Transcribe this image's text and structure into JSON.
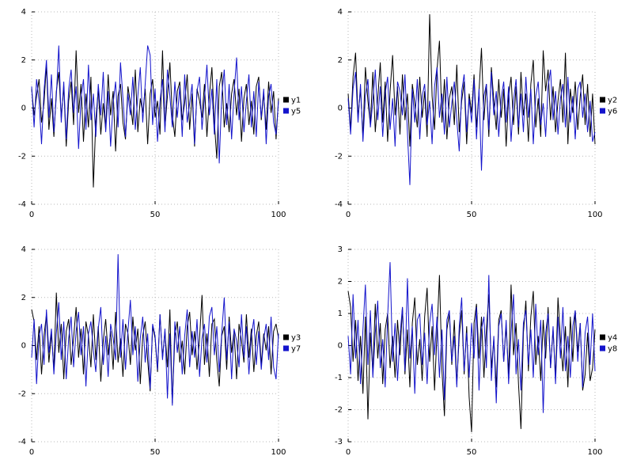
{
  "page": {
    "background": "#ffffff",
    "text_color": "#000000",
    "grid_color": "#b8b8b8"
  },
  "chart_data": [
    {
      "type": "line",
      "title": "",
      "xlabel": "",
      "ylabel": "",
      "x_range": [
        0,
        100
      ],
      "xticks": [
        0,
        50,
        100
      ],
      "ylim": [
        -4,
        4
      ],
      "yticks": [
        -4,
        -2,
        0,
        2,
        4
      ],
      "grid": true,
      "legend_position": "right",
      "series": [
        {
          "name": "y1",
          "color": "#000000",
          "values": [
            0.8,
            -0.3,
            0.5,
            1.2,
            -0.6,
            0.2,
            1.8,
            -0.9,
            0.4,
            -1.2,
            0.7,
            1.5,
            -0.4,
            0.9,
            -1.6,
            0.3,
            1.1,
            -0.7,
            2.4,
            -0.2,
            1.0,
            -1.4,
            0.6,
            -0.8,
            1.3,
            -3.3,
            -0.5,
            0.8,
            -1.1,
            0.2,
            -0.9,
            1.4,
            -0.3,
            0.7,
            -1.8,
            0.5,
            1.0,
            -0.6,
            -1.3,
            0.9,
            0.2,
            -0.7,
            1.6,
            -1.0,
            0.4,
            -0.2,
            0.8,
            -1.5,
            0.6,
            1.2,
            -0.4,
            0.3,
            -1.1,
            2.4,
            -0.8,
            0.5,
            1.9,
            -0.3,
            -1.2,
            0.7,
            1.1,
            -0.5,
            0.2,
            1.4,
            -0.9,
            0.6,
            -1.6,
            0.8,
            0.3,
            -0.4,
            1.0,
            -1.2,
            0.5,
            1.7,
            -0.6,
            -2.1,
            0.9,
            1.5,
            -0.8,
            0.2,
            -1.0,
            0.6,
            1.2,
            -0.3,
            0.8,
            -1.4,
            0.4,
            1.0,
            -0.7,
            0.3,
            -1.1,
            0.9,
            1.3,
            -0.5,
            0.6,
            -0.9,
            1.1,
            -0.2,
            0.7,
            -1.3,
            0.4
          ]
        },
        {
          "name": "y5",
          "color": "#1414cc",
          "values": [
            0.9,
            -0.8,
            1.2,
            0.3,
            -1.5,
            0.7,
            2.0,
            -0.4,
            1.4,
            -1.0,
            0.5,
            2.6,
            -0.6,
            1.1,
            -1.3,
            0.8,
            1.6,
            -0.2,
            0.9,
            -1.7,
            0.4,
            1.2,
            -0.9,
            1.8,
            -0.5,
            0.6,
            -1.2,
            1.0,
            -0.3,
            1.5,
            -1.0,
            0.7,
            -1.6,
            0.2,
            1.1,
            -0.8,
            1.9,
            0.4,
            -1.2,
            0.6,
            -0.3,
            1.3,
            -0.9,
            0.5,
            1.7,
            -0.6,
            1.0,
            2.6,
            2.2,
            -0.7,
            0.8,
            -1.4,
            0.3,
            1.2,
            -1.0,
            1.6,
            0.5,
            -0.8,
            1.1,
            -0.4,
            0.9,
            -1.2,
            1.4,
            -0.6,
            0.2,
            1.0,
            -1.5,
            0.7,
            1.3,
            -0.9,
            0.4,
            1.8,
            -0.3,
            0.8,
            -1.1,
            1.2,
            -2.3,
            0.5,
            1.6,
            -0.7,
            1.0,
            -1.3,
            0.6,
            2.1,
            -0.5,
            0.9,
            -1.0,
            0.3,
            1.4,
            -0.8,
            0.7,
            -1.2,
            1.1,
            -0.4,
            0.8,
            -1.5,
            0.5,
            1.0,
            -0.6,
            -1.1,
            0.3
          ]
        }
      ]
    },
    {
      "type": "line",
      "title": "",
      "xlabel": "",
      "ylabel": "",
      "x_range": [
        0,
        100
      ],
      "xticks": [
        0,
        50,
        100
      ],
      "ylim": [
        -4,
        4
      ],
      "yticks": [
        -4,
        -2,
        0,
        2,
        4
      ],
      "grid": true,
      "legend_position": "right",
      "series": [
        {
          "name": "y2",
          "color": "#000000",
          "values": [
            0.6,
            -0.9,
            1.3,
            2.3,
            -0.4,
            0.8,
            -1.2,
            1.7,
            0.3,
            -0.7,
            1.5,
            -1.0,
            0.4,
            1.9,
            -0.6,
            1.1,
            -1.4,
            0.7,
            2.2,
            -0.3,
            0.9,
            -1.1,
            1.4,
            -0.5,
            0.6,
            -1.6,
            1.0,
            0.2,
            -0.8,
            1.3,
            -0.4,
            0.7,
            -1.2,
            3.9,
            0.5,
            -0.9,
            1.6,
            2.8,
            -0.6,
            1.2,
            -1.3,
            0.4,
            0.9,
            -0.7,
            1.8,
            -1.0,
            0.3,
            1.1,
            -1.5,
            0.6,
            -0.2,
            1.4,
            -0.8,
            0.7,
            2.5,
            -0.5,
            1.0,
            -1.2,
            1.7,
            0.3,
            -0.9,
            1.2,
            -0.4,
            0.8,
            -1.6,
            0.5,
            1.3,
            -0.7,
            0.9,
            -1.1,
            1.5,
            -0.3,
            0.6,
            -1.4,
            1.0,
            2.0,
            -0.8,
            0.4,
            -1.2,
            2.4,
            0.7,
            1.6,
            -0.5,
            0.9,
            -1.0,
            0.3,
            1.2,
            -0.6,
            2.3,
            -1.5,
            0.8,
            -0.2,
            1.1,
            -0.9,
            0.5,
            1.4,
            -0.7,
            1.0,
            -1.2,
            0.6,
            -1.5
          ]
        },
        {
          "name": "y6",
          "color": "#1414cc",
          "values": [
            0.4,
            -1.1,
            0.8,
            1.5,
            -0.6,
            1.0,
            -1.4,
            0.5,
            1.2,
            -0.8,
            0.3,
            1.6,
            -0.5,
            0.9,
            -1.2,
            0.6,
            1.3,
            -0.9,
            0.4,
            -1.6,
            1.1,
            0.7,
            -0.3,
            1.4,
            -1.0,
            -3.2,
            0.8,
            -0.6,
            1.2,
            -1.3,
            0.5,
            1.0,
            -0.7,
            0.3,
            -1.5,
            0.9,
            1.7,
            -0.4,
            0.6,
            -1.1,
            1.3,
            -0.8,
            0.2,
            1.1,
            -0.5,
            -1.8,
            0.7,
            1.4,
            -1.0,
            0.4,
            -0.6,
            1.2,
            -1.3,
            0.8,
            -2.6,
            0.5,
            1.0,
            -0.9,
            1.5,
            -0.3,
            0.7,
            -1.2,
            0.4,
            1.1,
            -0.6,
            0.9,
            -1.4,
            0.3,
            1.2,
            -0.8,
            0.6,
            -1.0,
            1.3,
            -0.4,
            0.8,
            -1.5,
            0.5,
            1.1,
            -0.7,
            0.2,
            -1.2,
            0.9,
            1.6,
            -0.5,
            0.7,
            -1.1,
            0.4,
            1.0,
            -0.8,
            1.3,
            -0.6,
            0.5,
            -1.3,
            0.8,
            1.1,
            -0.4,
            0.6,
            -1.0,
            0.3,
            -1.4,
            -1.0
          ]
        }
      ]
    },
    {
      "type": "line",
      "title": "",
      "xlabel": "",
      "ylabel": "",
      "x_range": [
        0,
        100
      ],
      "xticks": [
        0,
        50,
        100
      ],
      "ylim": [
        -4,
        4
      ],
      "yticks": [
        -4,
        -2,
        0,
        2,
        4
      ],
      "grid": true,
      "legend_position": "right",
      "series": [
        {
          "name": "y3",
          "color": "#000000",
          "values": [
            1.5,
            1.0,
            -0.6,
            0.8,
            -1.2,
            0.4,
            1.3,
            -0.7,
            0.5,
            -1.0,
            2.2,
            -0.3,
            0.9,
            -1.4,
            0.6,
            1.1,
            -0.8,
            0.3,
            1.6,
            -0.5,
            0.7,
            -1.2,
            1.0,
            0.4,
            -0.9,
            1.3,
            -0.6,
            0.8,
            -1.5,
            0.2,
            1.1,
            -0.4,
            0.6,
            -1.0,
            1.4,
            -0.7,
            0.3,
            -1.3,
            0.9,
            0.5,
            -0.8,
            1.2,
            -0.2,
            0.7,
            -1.6,
            0.4,
            1.0,
            -0.6,
            -1.9,
            0.8,
            0.3,
            -1.1,
            1.3,
            -0.5,
            0.6,
            -0.9,
            1.5,
            -2.4,
            0.4,
            1.0,
            -0.7,
            0.2,
            -1.2,
            0.8,
            1.4,
            -0.4,
            0.6,
            -1.0,
            0.3,
            2.1,
            -0.8,
            0.5,
            -1.3,
            0.9,
            1.1,
            -0.6,
            -1.7,
            0.4,
            0.8,
            -1.0,
            1.2,
            -0.3,
            0.6,
            -1.4,
            0.9,
            0.2,
            -0.7,
            1.3,
            -0.5,
            0.7,
            -1.1,
            0.4,
            1.0,
            -0.8,
            0.5,
            -0.2,
            0.8,
            -1.2,
            0.6,
            0.9,
            0.3
          ]
        },
        {
          "name": "y7",
          "color": "#1414cc",
          "values": [
            -0.5,
            1.1,
            -1.6,
            0.4,
            0.9,
            -0.8,
            1.5,
            -0.3,
            0.7,
            -1.2,
            0.5,
            1.8,
            -0.6,
            1.0,
            -1.4,
            0.3,
            1.2,
            -0.9,
            0.6,
            1.4,
            -0.4,
            0.8,
            -1.7,
            0.5,
            1.0,
            -0.2,
            -1.1,
            0.7,
            1.6,
            -0.8,
            0.4,
            -1.3,
            0.9,
            0.3,
            -0.6,
            3.8,
            -0.5,
            1.1,
            -1.0,
            0.6,
            1.9,
            -0.4,
            0.8,
            -1.5,
            0.3,
            1.2,
            -0.7,
            0.5,
            -1.8,
            0.9,
            0.4,
            -1.0,
            1.3,
            -0.6,
            0.7,
            -2.2,
            0.5,
            -2.5,
            1.0,
            -0.3,
            0.8,
            -1.2,
            0.4,
            1.5,
            -0.9,
            0.6,
            -0.5,
            1.1,
            -1.3,
            0.3,
            0.9,
            -0.7,
            1.2,
            1.6,
            -0.4,
            0.8,
            -1.1,
            0.5,
            2.0,
            -0.6,
            1.0,
            -1.4,
            0.7,
            0.2,
            -0.9,
            1.3,
            -0.5,
            0.8,
            -1.2,
            0.4,
            1.1,
            -0.8,
            0.6,
            -1.0,
            0.3,
            0.9,
            -0.6,
            1.2,
            -0.9,
            -1.4,
            0.5
          ]
        }
      ]
    },
    {
      "type": "line",
      "title": "",
      "xlabel": "",
      "ylabel": "",
      "x_range": [
        0,
        100
      ],
      "xticks": [
        0,
        50,
        100
      ],
      "ylim": [
        -3,
        3
      ],
      "yticks": [
        -3,
        -2,
        -1,
        0,
        1,
        2,
        3
      ],
      "grid": true,
      "legend_position": "right",
      "series": [
        {
          "name": "y4",
          "color": "#000000",
          "values": [
            1.7,
            1.2,
            -0.5,
            0.8,
            -1.1,
            0.3,
            -1.5,
            0.9,
            -2.3,
            0.4,
            -0.8,
            1.3,
            -0.4,
            0.7,
            -1.2,
            0.5,
            1.0,
            -0.7,
            0.3,
            -1.0,
            0.8,
            -0.3,
            1.2,
            -0.9,
            0.5,
            -1.3,
            0.7,
            1.5,
            -0.6,
            0.2,
            -1.1,
            0.9,
            1.8,
            -0.5,
            0.6,
            -1.4,
            0.4,
            2.2,
            -0.8,
            -2.2,
            0.5,
            1.0,
            -0.6,
            0.8,
            -1.2,
            0.3,
            1.1,
            -0.9,
            0.6,
            -1.6,
            -2.7,
            0.7,
            1.3,
            -0.4,
            0.9,
            -1.0,
            0.5,
            1.6,
            -0.7,
            0.2,
            -1.3,
            0.8,
            1.1,
            -0.5,
            0.6,
            -0.9,
            1.9,
            -0.3,
            0.7,
            -1.2,
            -2.6,
            0.4,
            1.4,
            -0.8,
            0.9,
            1.7,
            -0.6,
            0.3,
            -1.1,
            0.8,
            -0.4,
            1.2,
            -0.7,
            0.5,
            -1.0,
            1.5,
            0.2,
            -0.8,
            0.6,
            -1.3,
            0.9,
            -0.5,
            1.1,
            -0.2,
            0.7,
            -1.4,
            -0.9,
            0.4,
            -1.1,
            -0.7,
            0.5
          ]
        },
        {
          "name": "y8",
          "color": "#1414cc",
          "values": [
            0.3,
            -0.9,
            1.6,
            -0.4,
            0.8,
            -1.2,
            0.5,
            1.9,
            -0.6,
            1.1,
            -1.0,
            0.4,
            1.4,
            -0.7,
            0.2,
            -1.3,
            0.9,
            2.6,
            -0.5,
            0.7,
            -1.1,
            0.3,
            1.2,
            -0.8,
            2.1,
            -0.4,
            0.6,
            -1.5,
            0.8,
            1.0,
            -0.6,
            0.4,
            -1.2,
            0.7,
            1.3,
            -0.3,
            0.9,
            -1.0,
            0.5,
            -1.7,
            0.8,
            1.1,
            -0.5,
            0.3,
            -1.3,
            0.6,
            1.5,
            -0.8,
            0.4,
            -1.0,
            0.7,
            -0.4,
            1.2,
            -1.4,
            0.5,
            0.9,
            -0.7,
            2.2,
            -1.1,
            0.3,
            -1.8,
            0.6,
            1.0,
            -0.5,
            0.8,
            -1.2,
            0.4,
            1.6,
            -0.9,
            0.2,
            -1.4,
            0.7,
            1.1,
            -0.6,
            0.5,
            -1.0,
            1.3,
            -0.3,
            0.8,
            -2.1,
            0.4,
            1.0,
            -0.7,
            0.6,
            -1.2,
            0.9,
            -0.4,
            1.2,
            -0.8,
            0.3,
            -1.0,
            0.6,
            1.1,
            -0.5,
            0.7,
            -1.3,
            0.4,
            0.9,
            -0.6,
            1.0,
            -0.8
          ]
        }
      ]
    }
  ]
}
